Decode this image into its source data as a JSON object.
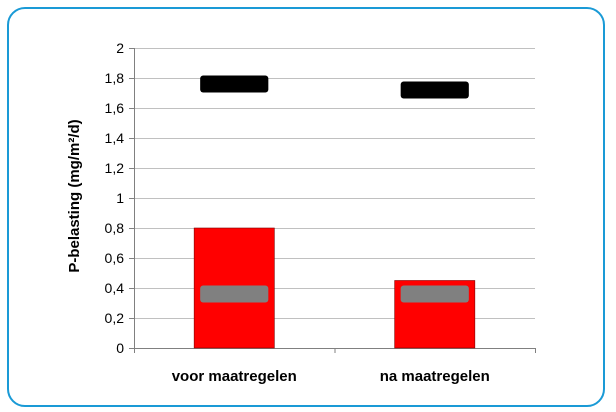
{
  "chart_data": {
    "type": "bar",
    "ylabel": "P-belasting (mg/m²/d)",
    "xlabel": "",
    "ylim": [
      0,
      2
    ],
    "yticks": [
      "0",
      "0,2",
      "0,4",
      "0,6",
      "0,8",
      "1",
      "1,2",
      "1,4",
      "1,6",
      "1,8",
      "2"
    ],
    "yticks_values": [
      0,
      0.2,
      0.4,
      0.6,
      0.8,
      1.0,
      1.2,
      1.4,
      1.6,
      1.8,
      2.0
    ],
    "categories": [
      "voor maatregelen",
      "na maatregelen"
    ],
    "series": [
      {
        "kind": "bar",
        "values": [
          0.8,
          0.45
        ],
        "color": "#ff0000"
      },
      {
        "kind": "marker",
        "values": [
          1.76,
          1.72
        ],
        "color": "#000000"
      },
      {
        "kind": "marker",
        "values": [
          0.36,
          0.36
        ],
        "color": "#808080"
      }
    ],
    "grid": true,
    "legend": "none"
  },
  "colors": {
    "frame": "#1a9ad6",
    "grid": "#c0c0c0",
    "axis": "#808080"
  }
}
